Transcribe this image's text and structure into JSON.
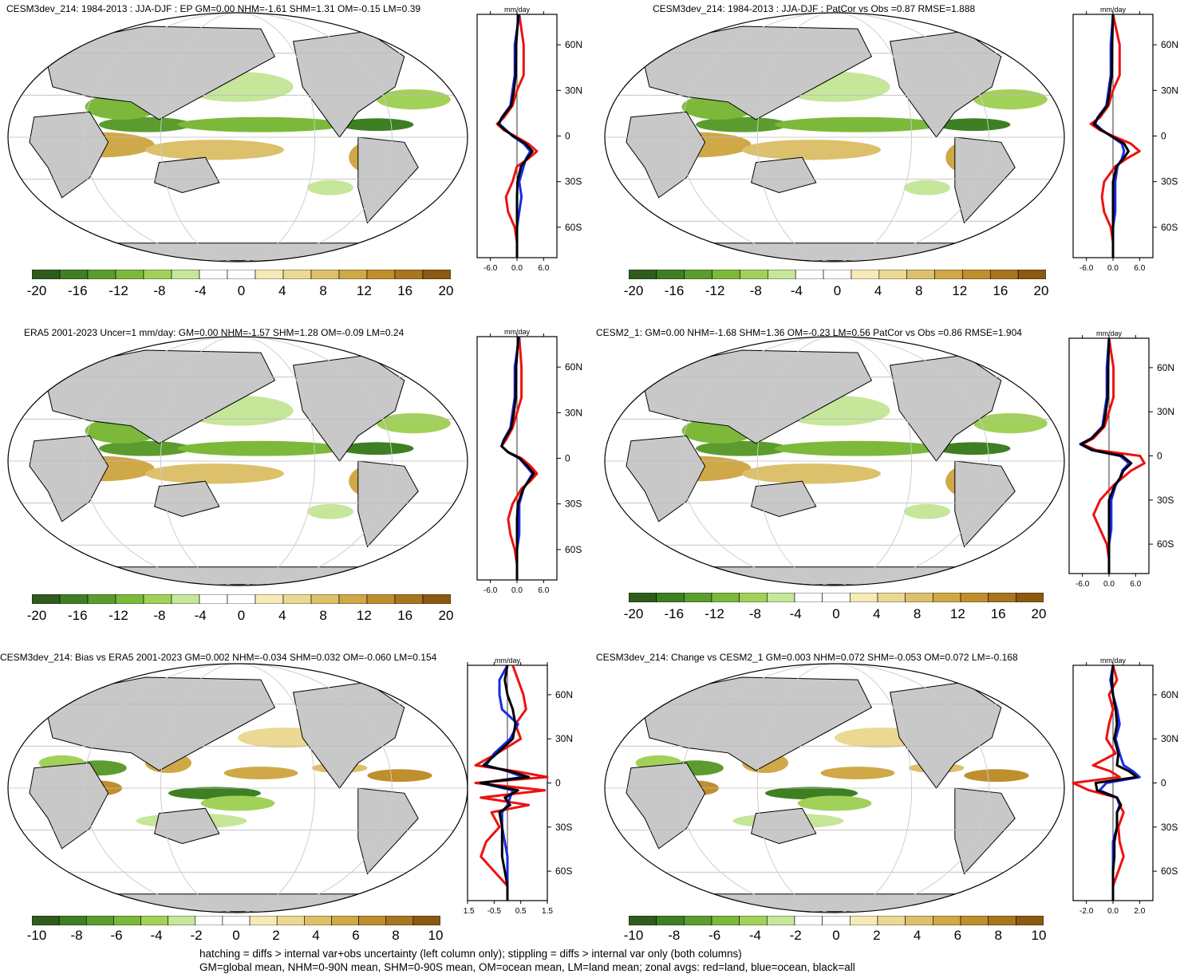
{
  "chart_data": [
    {
      "type": "heatmap",
      "title": "CESM3dev_214: 1984-2013 : JJA-DJF : EP GM=0.00 NHM=-1.61 SHM=1.31 OM=-0.15 LM=0.39",
      "colorbar_ticks": [
        "-20",
        "-16",
        "-12",
        "-8",
        "-4",
        "0",
        "4",
        "8",
        "12",
        "16",
        "20"
      ],
      "zonal": {
        "unit": "mm/day",
        "xticks": [
          "-6.0",
          "0.0",
          "6.0"
        ],
        "xlim": [
          -9,
          9
        ],
        "yticks": [
          "60N",
          "30N",
          "0",
          "30S",
          "60S"
        ],
        "lat": [
          80,
          60,
          40,
          30,
          20,
          12,
          8,
          4,
          0,
          -5,
          -10,
          -15,
          -20,
          -30,
          -40,
          -50,
          -60,
          -70,
          -80
        ],
        "series": [
          {
            "name": "red",
            "values": [
              0.5,
              1.5,
              1.5,
              0,
              -1,
              -3,
              -4.5,
              -3,
              -0.5,
              2.5,
              4.5,
              2.5,
              0,
              -1,
              -2.5,
              -2,
              -0.5,
              0,
              0
            ]
          },
          {
            "name": "blue",
            "values": [
              0.5,
              -0.5,
              -0.5,
              -1,
              -1.5,
              -3.5,
              -4,
              -2.5,
              -1,
              1.5,
              3,
              2,
              1.5,
              0.5,
              1,
              0.5,
              0,
              0,
              0
            ]
          },
          {
            "name": "black",
            "values": [
              0.3,
              -0.2,
              -0.3,
              -0.7,
              -1.3,
              -3.4,
              -4.2,
              -2.7,
              -0.9,
              1.9,
              3.5,
              2.2,
              0.9,
              0.1,
              0,
              0,
              0,
              0,
              0
            ]
          }
        ]
      }
    },
    {
      "type": "heatmap",
      "title": "CESM3dev_214: 1984-2013 : JJA-DJF : PatCor vs Obs =0.87 RMSE=1.888",
      "colorbar_ticks": [
        "-20",
        "-16",
        "-12",
        "-8",
        "-4",
        "0",
        "4",
        "8",
        "12",
        "16",
        "20"
      ],
      "zonal": {
        "unit": "mm/day",
        "xticks": [
          "-6.0",
          "0.0",
          "6.0"
        ],
        "xlim": [
          -9,
          9
        ],
        "yticks": [
          "60N",
          "30N",
          "0",
          "30S",
          "60S"
        ],
        "lat": [
          80,
          60,
          40,
          30,
          20,
          12,
          8,
          4,
          0,
          -5,
          -10,
          -15,
          -20,
          -30,
          -40,
          -50,
          -60,
          -70,
          -80
        ],
        "series": [
          {
            "name": "red",
            "values": [
              0,
              1.5,
              1.5,
              0,
              -1,
              -3,
              -5,
              -3,
              0,
              4,
              6,
              3,
              0.5,
              -2,
              -2.5,
              -2,
              -0.5,
              0,
              0
            ]
          },
          {
            "name": "blue",
            "values": [
              0,
              -0.5,
              -0.5,
              -1,
              -1.5,
              -3.5,
              -4,
              -2.5,
              -0.5,
              2,
              2.5,
              2,
              1,
              0.5,
              0.5,
              0.5,
              0,
              0,
              0
            ]
          },
          {
            "name": "black",
            "values": [
              0,
              -0.2,
              -0.3,
              -0.7,
              -1.3,
              -3.4,
              -4.3,
              -2.7,
              -0.4,
              2.5,
              3.5,
              2.3,
              0.8,
              0,
              0,
              0,
              0,
              0,
              0
            ]
          }
        ]
      }
    },
    {
      "type": "heatmap",
      "title": "ERA5 2001-2023 Uncer=1 mm/day: GM=0.00 NHM=-1.57 SHM=1.28 OM=-0.09 LM=0.24",
      "colorbar_ticks": [
        "-20",
        "-16",
        "-12",
        "-8",
        "-4",
        "0",
        "4",
        "8",
        "12",
        "16",
        "20"
      ],
      "zonal": {
        "unit": "mm/day",
        "xticks": [
          "-6.0",
          "0.0",
          "6.0"
        ],
        "xlim": [
          -9,
          9
        ],
        "yticks": [
          "60N",
          "30N",
          "0",
          "30S",
          "60S"
        ],
        "lat": [
          80,
          60,
          40,
          30,
          20,
          12,
          8,
          4,
          0,
          -5,
          -10,
          -15,
          -20,
          -30,
          -40,
          -50,
          -60,
          -70,
          -80
        ],
        "series": [
          {
            "name": "red",
            "values": [
              0.5,
              1,
              1,
              0,
              -1,
              -2.5,
              -3.5,
              -2,
              1,
              3,
              4.5,
              3,
              1,
              -1,
              -2,
              -1.5,
              -0.5,
              0,
              0
            ]
          },
          {
            "name": "blue",
            "values": [
              0.5,
              -0.5,
              -0.5,
              -1,
              -1.5,
              -3,
              -3.5,
              -2,
              0.5,
              2,
              3.5,
              2.5,
              1.5,
              0.5,
              0.5,
              0.5,
              0,
              0,
              0
            ]
          },
          {
            "name": "black",
            "values": [
              0.3,
              -0.2,
              -0.3,
              -0.7,
              -1.3,
              -2.9,
              -3.5,
              -2,
              0.6,
              2.3,
              3.8,
              2.6,
              1.4,
              0.2,
              0,
              0,
              0,
              0,
              0
            ]
          }
        ]
      }
    },
    {
      "type": "heatmap",
      "title": "CESM2_1: GM=0.00 NHM=-1.68 SHM=1.36 OM=-0.23 LM=0.56 PatCor vs Obs =0.86 RMSE=1.904",
      "colorbar_ticks": [
        "-20",
        "-16",
        "-12",
        "-8",
        "-4",
        "0",
        "4",
        "8",
        "12",
        "16",
        "20"
      ],
      "zonal": {
        "unit": "mm/day",
        "xticks": [
          "-6.0",
          "0.0",
          "6.0"
        ],
        "xlim": [
          -9,
          9
        ],
        "yticks": [
          "60N",
          "30N",
          "0",
          "30S",
          "60S"
        ],
        "lat": [
          80,
          60,
          40,
          30,
          20,
          12,
          8,
          4,
          0,
          -5,
          -10,
          -15,
          -20,
          -30,
          -40,
          -50,
          -60,
          -70,
          -80
        ],
        "series": [
          {
            "name": "red",
            "values": [
              0,
              1,
              1,
              0,
              -1,
              -3.5,
              -6,
              -3,
              7,
              8,
              5,
              3,
              1,
              -2,
              -3.5,
              -2,
              -0.5,
              0,
              0
            ]
          },
          {
            "name": "blue",
            "values": [
              0,
              -0.5,
              -0.5,
              -1,
              -1.5,
              -4,
              -6.5,
              -4,
              2.5,
              4.5,
              3,
              2.5,
              1.5,
              0.5,
              0.5,
              0.5,
              0,
              0,
              0
            ]
          },
          {
            "name": "black",
            "values": [
              0,
              -0.2,
              -0.3,
              -0.7,
              -1.3,
              -3.9,
              -6.3,
              -3.8,
              3,
              5,
              3.3,
              2.5,
              1.3,
              0,
              0,
              0,
              0,
              0,
              0
            ]
          }
        ]
      }
    },
    {
      "type": "heatmap",
      "title": "CESM3dev_214: Bias vs ERA5 2001-2023 GM=0.002 NHM=-0.034 SHM=0.032 OM=-0.060 LM=0.154",
      "colorbar_ticks": [
        "-10",
        "-8",
        "-6",
        "-4",
        "-2",
        "0",
        "2",
        "4",
        "6",
        "8",
        "10"
      ],
      "zonal": {
        "unit": "mm/day",
        "xticks": [
          "-1.5",
          "-0.5",
          "0.5",
          "1.5"
        ],
        "xlim": [
          -1.5,
          1.5
        ],
        "yticks": [
          "60N",
          "30N",
          "0",
          "30S",
          "60S"
        ],
        "lat": [
          80,
          70,
          60,
          50,
          40,
          30,
          20,
          12,
          8,
          4,
          0,
          -5,
          -10,
          -15,
          -20,
          -30,
          -40,
          -50,
          -60,
          -70,
          -80
        ],
        "series": [
          {
            "name": "red",
            "values": [
              0.2,
              0.4,
              0.6,
              0.7,
              0.3,
              0.5,
              -0.4,
              -1.2,
              0.3,
              1.5,
              -1.2,
              1.4,
              -1,
              0.8,
              -0.6,
              -0.3,
              -0.8,
              -1,
              -0.5,
              0,
              0
            ]
          },
          {
            "name": "blue",
            "values": [
              0,
              -0.3,
              -0.3,
              -0.2,
              0.4,
              0.1,
              -0.5,
              -0.8,
              0,
              0.6,
              -1,
              0.2,
              0.1,
              0,
              -0.2,
              -0.2,
              -0.1,
              0,
              0,
              0,
              0
            ]
          },
          {
            "name": "black",
            "values": [
              0,
              -0.1,
              0,
              0.2,
              0.3,
              0.2,
              -0.4,
              -0.9,
              0.1,
              0.8,
              -1,
              0.4,
              -0.1,
              0.1,
              -0.3,
              -0.2,
              -0.2,
              -0.2,
              -0.1,
              0,
              0
            ]
          }
        ]
      }
    },
    {
      "type": "heatmap",
      "title": "CESM3dev_214: Change vs CESM2_1 GM=0.003 NHM=0.072 SHM=-0.053 OM=0.072 LM=-0.168",
      "colorbar_ticks": [
        "-10",
        "-8",
        "-6",
        "-4",
        "-2",
        "0",
        "2",
        "4",
        "6",
        "8",
        "10"
      ],
      "zonal": {
        "unit": "mm/day",
        "xticks": [
          "-2.0",
          "0.0",
          "2.0"
        ],
        "xlim": [
          -3,
          3
        ],
        "yticks": [
          "60N",
          "30N",
          "0",
          "30S",
          "60S"
        ],
        "lat": [
          80,
          70,
          60,
          50,
          40,
          30,
          20,
          12,
          8,
          4,
          0,
          -5,
          -10,
          -15,
          -20,
          -30,
          -40,
          -50,
          -60,
          -70,
          -80
        ],
        "series": [
          {
            "name": "red",
            "values": [
              0,
              0.3,
              -0.3,
              0,
              -0.3,
              -0.5,
              0.2,
              -1.5,
              -0.2,
              0.5,
              -3,
              -1.8,
              0.3,
              0.5,
              0.8,
              0.4,
              0.5,
              0.8,
              0.4,
              0,
              0
            ]
          },
          {
            "name": "blue",
            "values": [
              0,
              -0.2,
              0,
              0.3,
              0.5,
              0.2,
              0.5,
              0.8,
              1.5,
              2,
              -0.5,
              -1,
              0.3,
              0.5,
              0.3,
              0.3,
              0,
              0,
              0,
              0,
              0
            ]
          },
          {
            "name": "black",
            "values": [
              0,
              -0.1,
              0,
              0.2,
              0.3,
              0.1,
              0.4,
              0.3,
              1.2,
              1.8,
              -1.3,
              -1.2,
              0.3,
              0.6,
              0.3,
              0.3,
              0.1,
              0.1,
              0,
              0,
              0
            ]
          }
        ]
      }
    }
  ],
  "footer": {
    "line1": "hatching = diffs > internal var+obs uncertainty (left column only); stippling = diffs > internal var only (both columns)",
    "line2": "GM=global mean, NHM=0-90N mean, SHM=0-90S mean, OM=ocean mean, LM=land mean; zonal avgs: red=land, blue=ocean, black=all"
  },
  "colors": {
    "scale": [
      "#2f5c1c",
      "#3e7f24",
      "#5c9c2e",
      "#7cb93b",
      "#a2d15a",
      "#c6e69a",
      "#ffffff",
      "#ffffff",
      "#f5eab8",
      "#ebd893",
      "#dcc06b",
      "#cfa847",
      "#bf8f2e",
      "#a8761f",
      "#8a5a12"
    ],
    "land": "#c8c8c8",
    "red": "#ee1111",
    "blue": "#1a2ae8",
    "black": "#000000"
  }
}
